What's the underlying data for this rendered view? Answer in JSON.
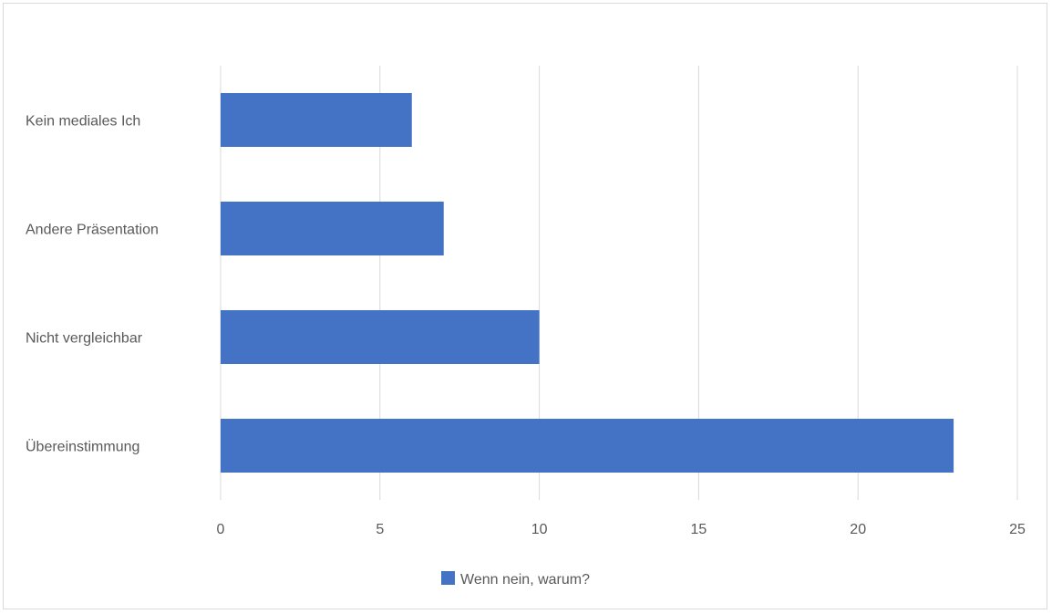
{
  "chart_data": {
    "type": "bar",
    "orientation": "horizontal",
    "categories": [
      "Kein mediales Ich",
      "Andere Präsentation",
      "Nicht vergleichbar",
      "Übereinstimmung"
    ],
    "series": [
      {
        "name": "Wenn nein, warum?",
        "values": [
          6,
          7,
          10,
          23
        ]
      }
    ],
    "xlim": [
      0,
      25
    ],
    "xticks": [
      0,
      5,
      10,
      15,
      20,
      25
    ],
    "grid": true,
    "legend_position": "bottom",
    "colors": {
      "bar": "#4472C4",
      "grid": "#d9d9d9",
      "text": "#595959"
    }
  }
}
